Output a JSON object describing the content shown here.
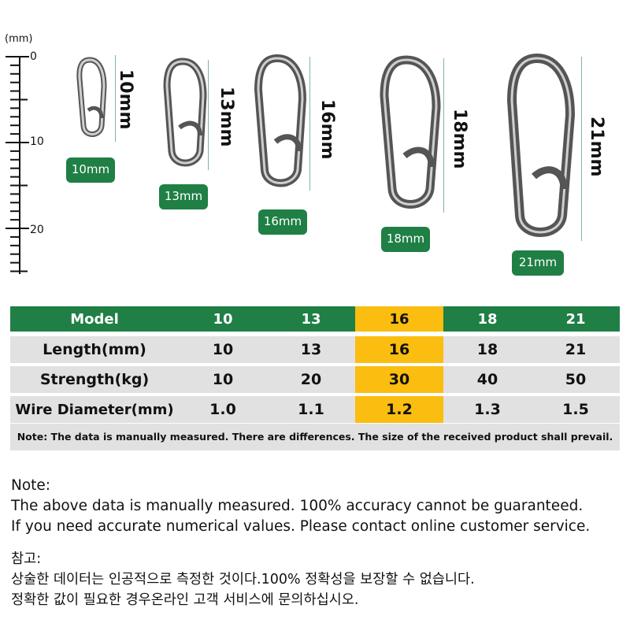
{
  "ruler": {
    "unit": "(mm)",
    "labels": [
      "0",
      "10",
      "20"
    ]
  },
  "clips": [
    {
      "size_label": "10mm",
      "badge": "10mm"
    },
    {
      "size_label": "13mm",
      "badge": "13mm"
    },
    {
      "size_label": "16mm",
      "badge": "16mm"
    },
    {
      "size_label": "18mm",
      "badge": "18mm"
    },
    {
      "size_label": "21mm",
      "badge": "21mm"
    }
  ],
  "table": {
    "header": [
      "Model",
      "10",
      "13",
      "16",
      "18",
      "21"
    ],
    "rows": [
      [
        "Length(mm)",
        "10",
        "13",
        "16",
        "18",
        "21"
      ],
      [
        "Strength(kg)",
        "10",
        "20",
        "30",
        "40",
        "50"
      ],
      [
        "Wire Diameter(mm)",
        "1.0",
        "1.1",
        "1.2",
        "1.3",
        "1.5"
      ]
    ],
    "note": "Note: The data is manually measured. There are differences. The size of the received product shall prevail.",
    "colors": {
      "header_green": "#1f7f45",
      "highlight": "#fbbd0f",
      "row_gray": "#e1e1e1"
    }
  },
  "note_en": {
    "title": "Note:",
    "line1": "The above data is manually measured. 100% accuracy cannot be guaranteed.",
    "line2": "If you need accurate numerical values. Please contact online customer service."
  },
  "note_ko": {
    "title": "참고:",
    "line1": "상술한 데이터는 인공적으로 측정한 것이다.100% 정확성을 보장할 수 없습니다.",
    "line2": "정확한 값이 필요한 경우온라인 고객 서비스에 문의하십시오."
  }
}
